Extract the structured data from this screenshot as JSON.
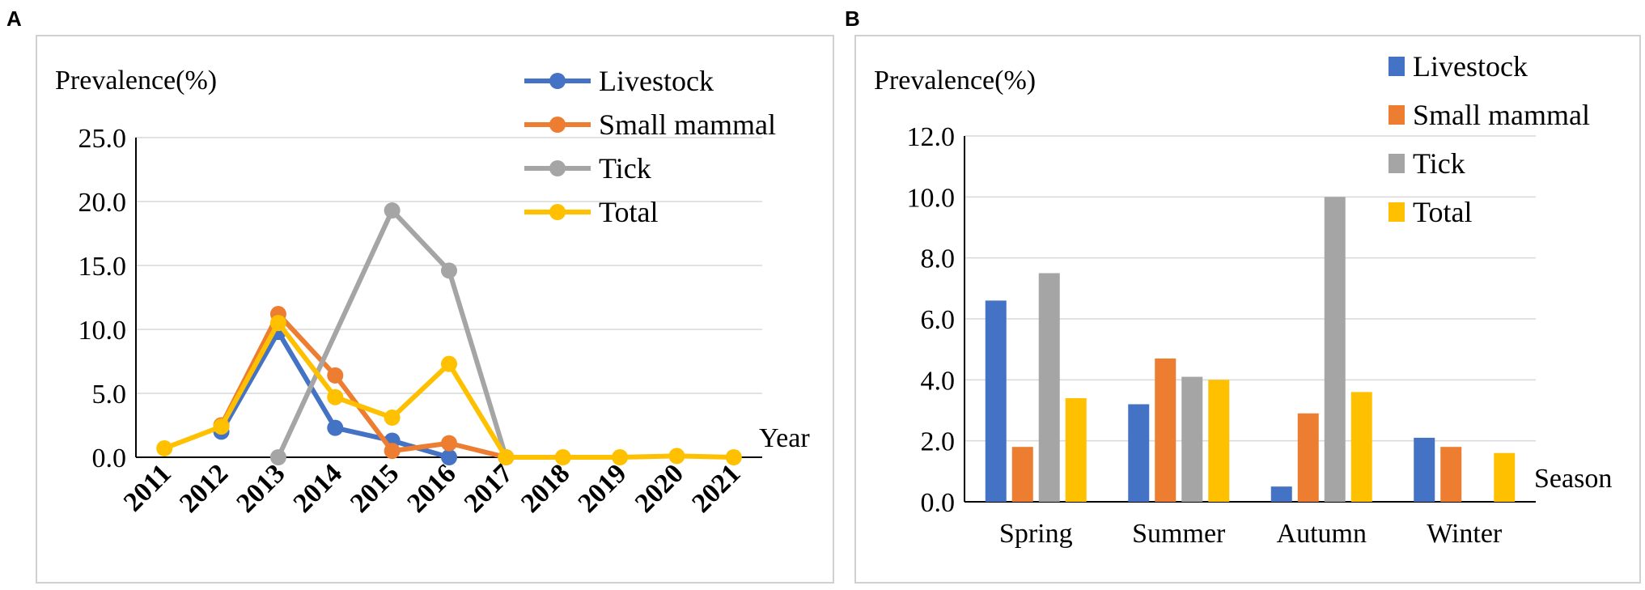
{
  "panels": [
    "A",
    "B"
  ],
  "chart_data": [
    {
      "type": "line",
      "panel": "A",
      "ylabel": "Prevalence(%)",
      "xlabel": "Year",
      "ylim": [
        0,
        25
      ],
      "yticks": [
        "25.0",
        "20.0",
        "15.0",
        "10.0",
        "5.0",
        "0.0"
      ],
      "ytick_values": [
        25,
        20,
        15,
        10,
        5,
        0
      ],
      "categories": [
        "2011",
        "2012",
        "2013",
        "2014",
        "2015",
        "2016",
        "2017",
        "2018",
        "2019",
        "2020",
        "2021"
      ],
      "legend_position": "top-right",
      "series": [
        {
          "name": "Livestock",
          "color": "#4472C4",
          "values": [
            null,
            2.0,
            9.8,
            2.3,
            1.3,
            0.0,
            null,
            null,
            null,
            null,
            null
          ]
        },
        {
          "name": "Small mammal",
          "color": "#ED7D31",
          "values": [
            null,
            2.5,
            11.2,
            6.4,
            0.5,
            1.1,
            0.0,
            null,
            null,
            null,
            null
          ]
        },
        {
          "name": "Tick",
          "color": "#A5A5A5",
          "values": [
            null,
            null,
            0.0,
            null,
            19.3,
            14.6,
            0.0,
            null,
            null,
            null,
            null
          ]
        },
        {
          "name": "Total",
          "color": "#FFC000",
          "values": [
            0.7,
            2.4,
            10.5,
            4.7,
            3.1,
            7.3,
            0.0,
            0.0,
            0.0,
            0.1,
            0.0
          ]
        }
      ]
    },
    {
      "type": "bar",
      "panel": "B",
      "ylabel": "Prevalence(%)",
      "xlabel": "Season",
      "ylim": [
        0,
        12
      ],
      "yticks": [
        "12.0",
        "10.0",
        "8.0",
        "6.0",
        "4.0",
        "2.0",
        "0.0"
      ],
      "ytick_values": [
        12,
        10,
        8,
        6,
        4,
        2,
        0
      ],
      "categories": [
        "Spring",
        "Summer",
        "Autumn",
        "Winter"
      ],
      "legend_position": "top-right",
      "series": [
        {
          "name": "Livestock",
          "color": "#4472C4",
          "values": [
            6.6,
            3.2,
            0.5,
            2.1
          ]
        },
        {
          "name": "Small mammal",
          "color": "#ED7D31",
          "values": [
            1.8,
            4.7,
            2.9,
            1.8
          ]
        },
        {
          "name": "Tick",
          "color": "#A5A5A5",
          "values": [
            7.5,
            4.1,
            10.0,
            0.0
          ]
        },
        {
          "name": "Total",
          "color": "#FFC000",
          "values": [
            3.4,
            4.0,
            3.6,
            1.6
          ]
        }
      ]
    }
  ]
}
